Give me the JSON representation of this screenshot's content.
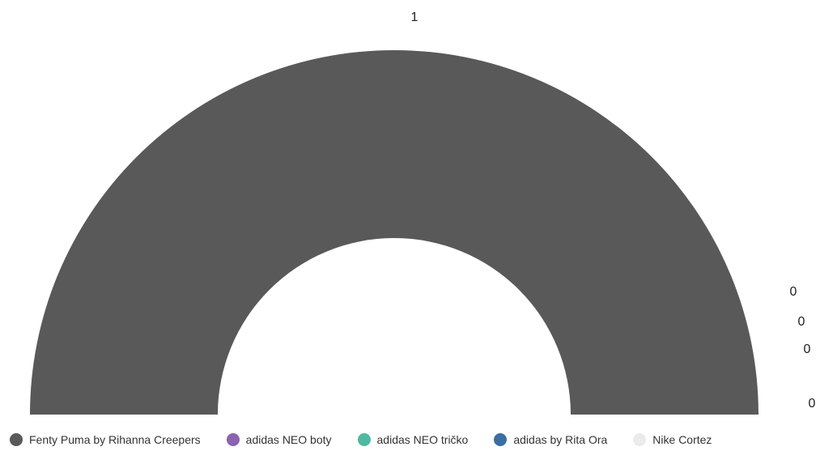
{
  "chart_data": {
    "type": "pie",
    "variant": "semi-donut",
    "categories": [
      "Fenty Puma by Rihanna Creepers",
      "adidas NEO boty",
      "adidas NEO tričko",
      "adidas by Rita Ora",
      "Nike Cortez"
    ],
    "values": [
      1,
      0,
      0,
      0,
      0
    ],
    "value_labels": [
      "1",
      "0",
      "0",
      "0",
      "0"
    ],
    "colors": [
      "#595959",
      "#8a63b2",
      "#4fb99f",
      "#3a6ea5",
      "#ebebeb"
    ],
    "legend_position": "bottom"
  }
}
